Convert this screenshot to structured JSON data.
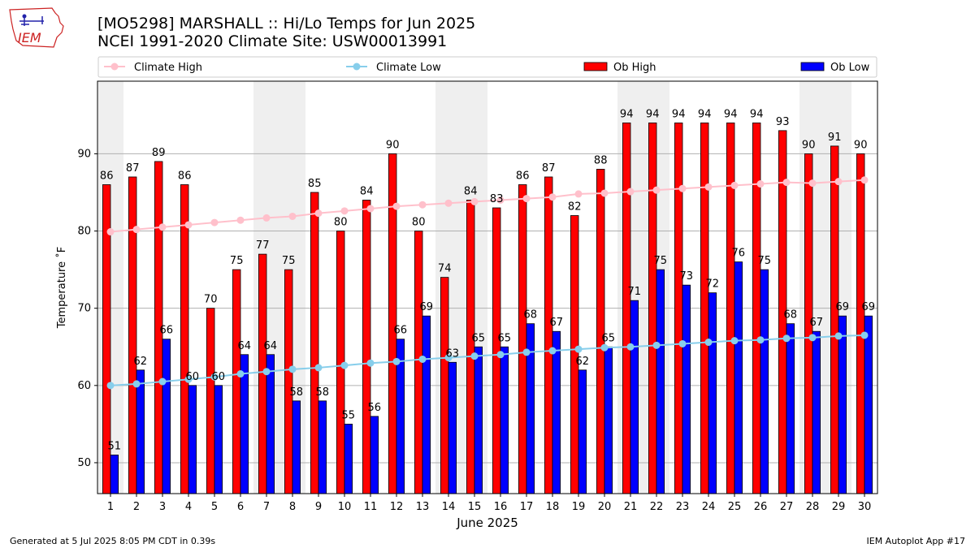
{
  "title_line1": "[MO5298] MARSHALL :: Hi/Lo Temps for Jun 2025",
  "title_line2": "NCEI 1991-2020 Climate Site: USW00013991",
  "footer_left": "Generated at 5 Jul 2025 8:05 PM CDT in 0.39s",
  "footer_right": "IEM Autoplot App #17",
  "logo_text": "IEM",
  "colors": {
    "ob_high": "#ff0000",
    "ob_low": "#0000ff",
    "climate_high": "#ffc0cb",
    "climate_low": "#87ceeb",
    "weekend_band": "#efefef",
    "grid": "#b0b0b0",
    "logo": "#cc2222"
  },
  "chart_data": {
    "type": "bar",
    "xlabel": "June 2025",
    "ylabel": "Temperature ˚F",
    "x": [
      1,
      2,
      3,
      4,
      5,
      6,
      7,
      8,
      9,
      10,
      11,
      12,
      13,
      14,
      15,
      16,
      17,
      18,
      19,
      20,
      21,
      22,
      23,
      24,
      25,
      26,
      27,
      28,
      29,
      30
    ],
    "ylim": [
      46,
      99.4
    ],
    "yticks": [
      50,
      60,
      70,
      80,
      90
    ],
    "grid": "horizontal",
    "legend_position": "top",
    "weekend_days": [
      1,
      7,
      8,
      14,
      15,
      21,
      22,
      28,
      29
    ],
    "series": [
      {
        "name": "Climate High",
        "kind": "line",
        "values": [
          79.9,
          80.2,
          80.5,
          80.8,
          81.1,
          81.4,
          81.7,
          81.9,
          82.3,
          82.6,
          82.9,
          83.2,
          83.4,
          83.6,
          83.8,
          84.0,
          84.2,
          84.4,
          84.8,
          84.9,
          85.1,
          85.3,
          85.5,
          85.7,
          85.9,
          86.1,
          86.3,
          86.2,
          86.4,
          86.6
        ]
      },
      {
        "name": "Climate Low",
        "kind": "line",
        "values": [
          60.0,
          60.2,
          60.5,
          60.8,
          61.1,
          61.5,
          61.8,
          62.1,
          62.3,
          62.6,
          62.9,
          63.1,
          63.4,
          63.6,
          63.8,
          64.0,
          64.3,
          64.5,
          64.7,
          64.9,
          65.0,
          65.2,
          65.4,
          65.6,
          65.8,
          65.9,
          66.1,
          66.2,
          66.4,
          66.5
        ]
      },
      {
        "name": "Ob High",
        "kind": "bar",
        "values": [
          86,
          87,
          89,
          86,
          70,
          75,
          77,
          75,
          85,
          80,
          84,
          90,
          80,
          74,
          84,
          83,
          86,
          87,
          82,
          88,
          94,
          94,
          94,
          94,
          94,
          94,
          93,
          90,
          91,
          90
        ]
      },
      {
        "name": "Ob Low",
        "kind": "bar",
        "values": [
          51,
          62,
          66,
          60,
          60,
          64,
          64,
          58,
          58,
          55,
          56,
          66,
          69,
          63,
          65,
          65,
          68,
          67,
          62,
          65,
          71,
          75,
          73,
          72,
          76,
          75,
          68,
          67,
          69,
          69
        ]
      }
    ]
  }
}
